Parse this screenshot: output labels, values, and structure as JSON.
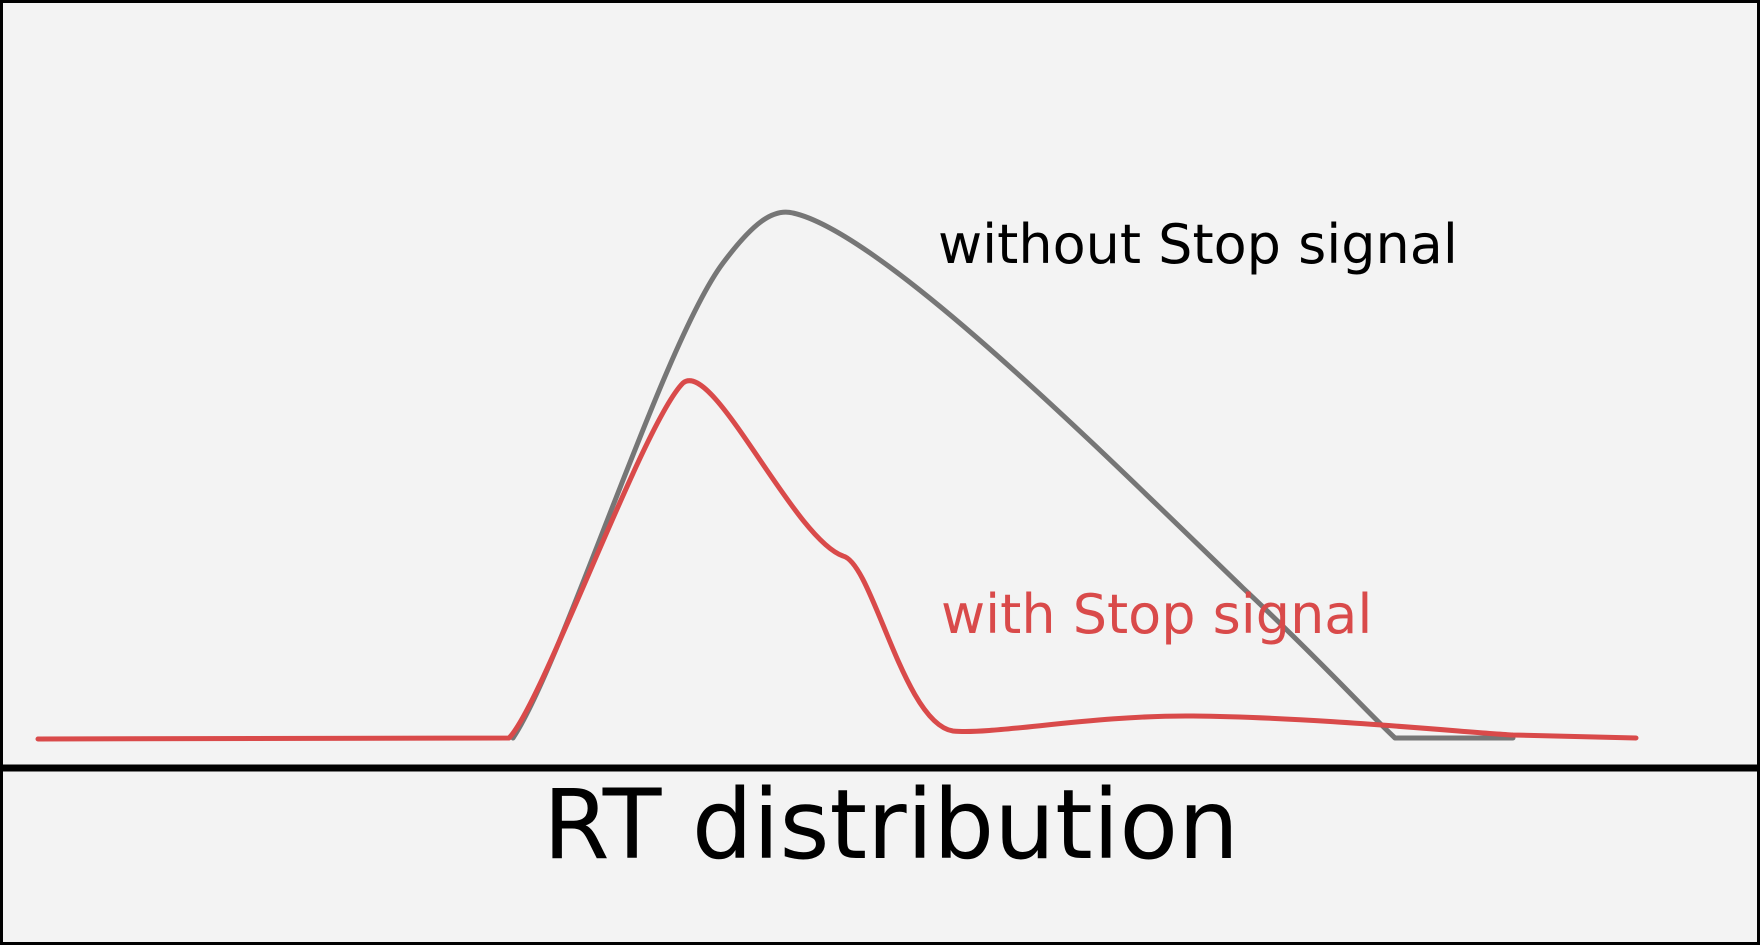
{
  "diagram": {
    "axis_title": "RT distribution",
    "colors": {
      "background": "#f3f3f3",
      "frame": "#000000",
      "baseline": "#000000"
    },
    "series": [
      {
        "id": "without",
        "label": "without Stop signal",
        "color": "#767676",
        "label_color": "#000000"
      },
      {
        "id": "with",
        "label": "with Stop signal",
        "color": "#d94a4a",
        "label_color": "#d94a4a"
      }
    ]
  }
}
